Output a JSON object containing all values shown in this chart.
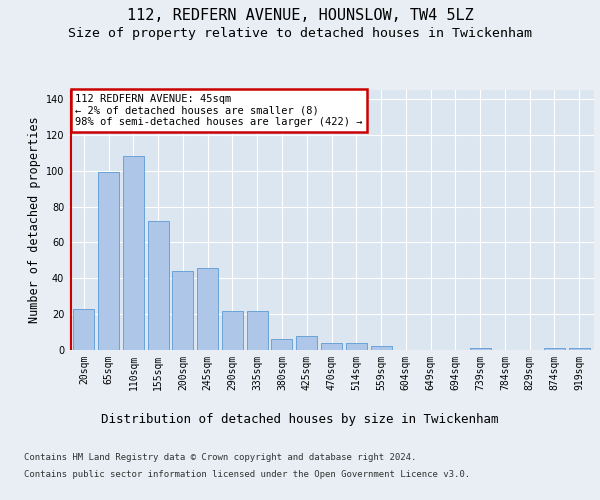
{
  "title": "112, REDFERN AVENUE, HOUNSLOW, TW4 5LZ",
  "subtitle": "Size of property relative to detached houses in Twickenham",
  "xlabel": "Distribution of detached houses by size in Twickenham",
  "ylabel": "Number of detached properties",
  "categories": [
    "20sqm",
    "65sqm",
    "110sqm",
    "155sqm",
    "200sqm",
    "245sqm",
    "290sqm",
    "335sqm",
    "380sqm",
    "425sqm",
    "470sqm",
    "514sqm",
    "559sqm",
    "604sqm",
    "649sqm",
    "694sqm",
    "739sqm",
    "784sqm",
    "829sqm",
    "874sqm",
    "919sqm"
  ],
  "values": [
    23,
    99,
    108,
    72,
    44,
    46,
    22,
    22,
    6,
    8,
    4,
    4,
    2,
    0,
    0,
    0,
    1,
    0,
    0,
    1,
    1
  ],
  "bar_color": "#aec6e8",
  "bar_edge_color": "#5b9bd5",
  "background_color": "#e8eef4",
  "plot_bg_color": "#dce6f0",
  "annotation_text": "112 REDFERN AVENUE: 45sqm\n← 2% of detached houses are smaller (8)\n98% of semi-detached houses are larger (422) →",
  "vline_color": "#cc0000",
  "annotation_box_edgecolor": "#cc0000",
  "ylim": [
    0,
    145
  ],
  "yticks": [
    0,
    20,
    40,
    60,
    80,
    100,
    120,
    140
  ],
  "footnote1": "Contains HM Land Registry data © Crown copyright and database right 2024.",
  "footnote2": "Contains public sector information licensed under the Open Government Licence v3.0.",
  "title_fontsize": 11,
  "subtitle_fontsize": 9.5,
  "tick_fontsize": 7,
  "ylabel_fontsize": 8.5,
  "xlabel_fontsize": 9,
  "annotation_fontsize": 7.5,
  "footnote_fontsize": 6.5
}
